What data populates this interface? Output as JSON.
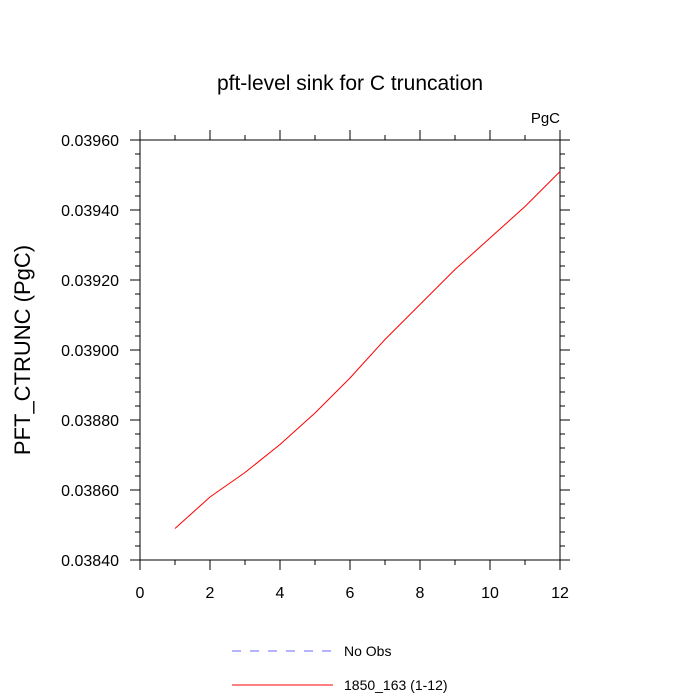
{
  "chart_data": {
    "type": "line",
    "title": "pft-level sink for C truncation",
    "units_label": "PgC",
    "ylabel": "PFT_CTRUNC  (PgC)",
    "xlabel": "",
    "xlim": [
      0,
      12
    ],
    "ylim": [
      0.0384,
      0.0396
    ],
    "x_ticks": [
      0,
      2,
      4,
      6,
      8,
      10,
      12
    ],
    "x_tick_labels": [
      "0",
      "2",
      "4",
      "6",
      "8",
      "10",
      "12"
    ],
    "y_ticks": [
      0.0384,
      0.0386,
      0.0388,
      0.039,
      0.0392,
      0.0394,
      0.0396
    ],
    "y_tick_labels": [
      "0.03840",
      "0.03860",
      "0.03880",
      "0.03900",
      "0.03920",
      "0.03940",
      "0.03960"
    ],
    "grid": false,
    "legend_position": "bottom",
    "series": [
      {
        "name": "1850_163 (1-12)",
        "color": "#ff0000",
        "dash": "solid",
        "x": [
          1,
          2,
          3,
          4,
          5,
          6,
          7,
          8,
          9,
          10,
          11,
          12
        ],
        "y": [
          0.03849,
          0.03858,
          0.03865,
          0.03873,
          0.03882,
          0.03892,
          0.03903,
          0.03913,
          0.03923,
          0.03932,
          0.03941,
          0.03951
        ]
      }
    ],
    "legend": [
      {
        "label": "No Obs",
        "color": "#6a6aff",
        "dash": "dashed"
      },
      {
        "label": "1850_163 (1-12)",
        "color": "#ff0000",
        "dash": "solid"
      }
    ]
  }
}
